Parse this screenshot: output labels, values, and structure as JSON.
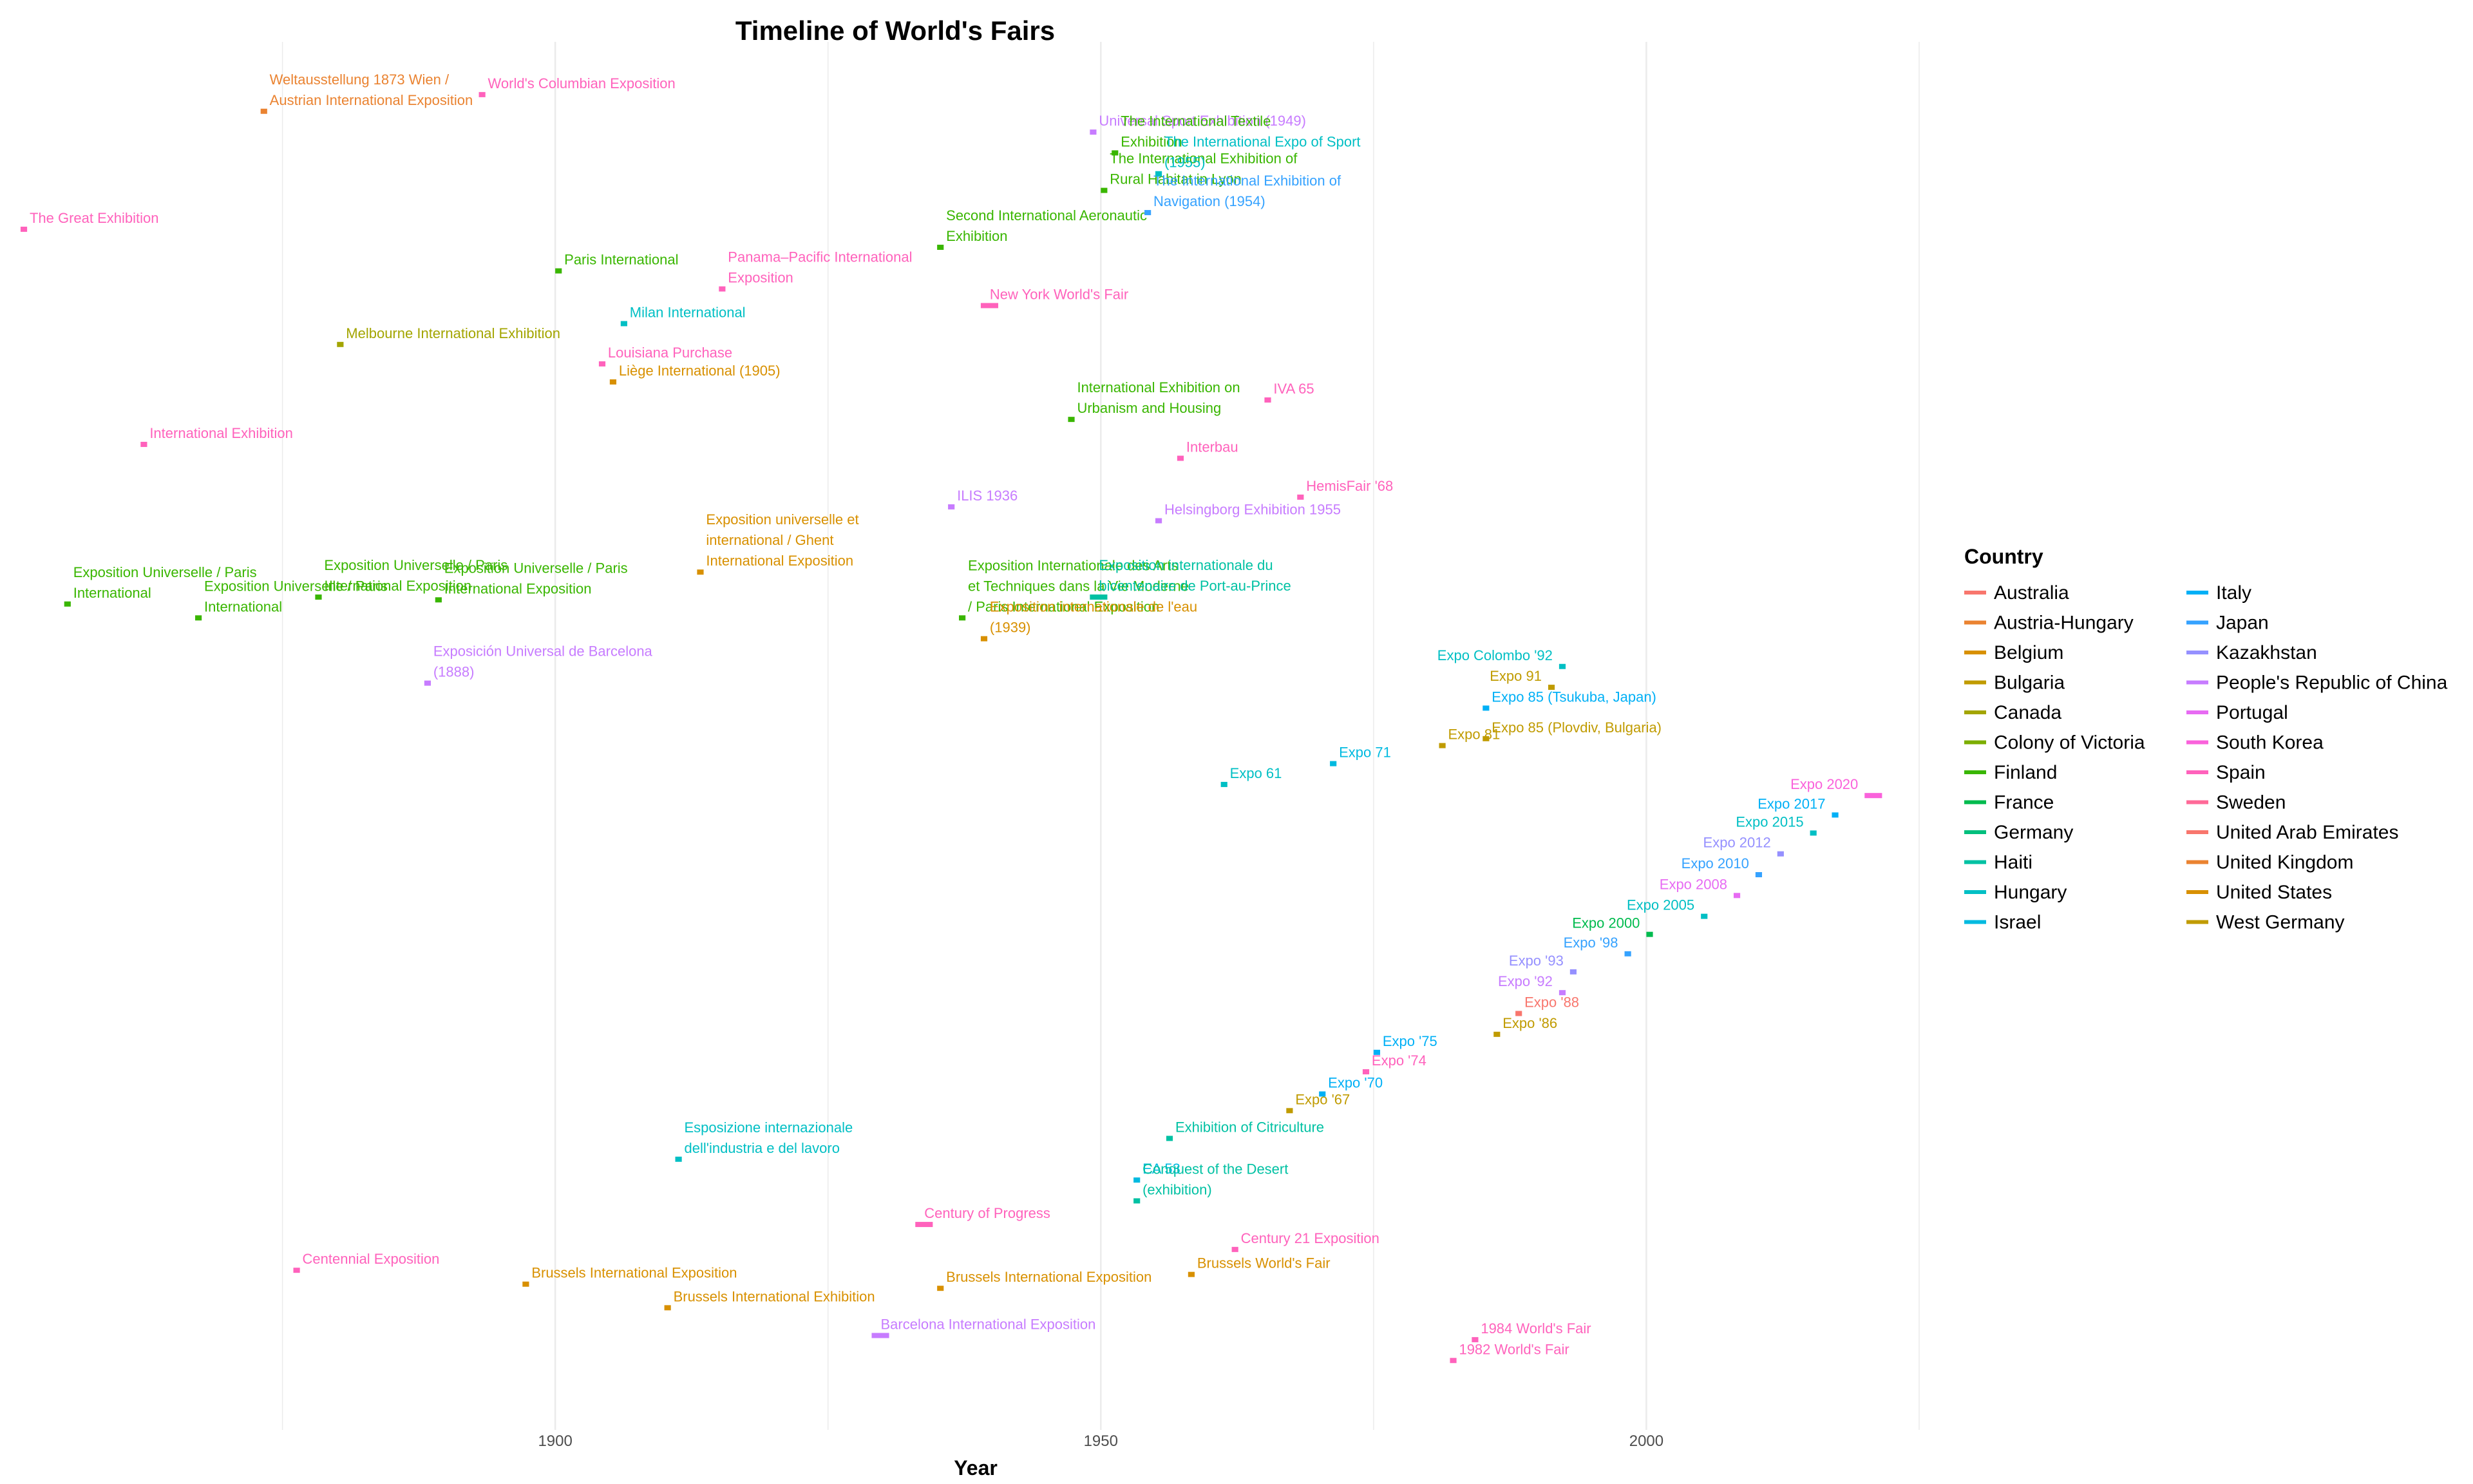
{
  "chart_data": {
    "type": "timeline",
    "title": "Timeline of World's Fairs",
    "xlabel": "Year",
    "ylabel": "",
    "xlim": [
      1850,
      2025
    ],
    "xticks": [
      1900,
      1950,
      2000
    ],
    "grid": true,
    "legend": {
      "title": "Country",
      "position": "right",
      "columns": 2,
      "entries": [
        {
          "name": "Australia",
          "color": "#F8766D"
        },
        {
          "name": "Austria-Hungary",
          "color": "#EA8331"
        },
        {
          "name": "Belgium",
          "color": "#D89000"
        },
        {
          "name": "Bulgaria",
          "color": "#C09B00"
        },
        {
          "name": "Canada",
          "color": "#A3A500"
        },
        {
          "name": "Colony of Victoria",
          "color": "#7CAE00"
        },
        {
          "name": "Finland",
          "color": "#39B600"
        },
        {
          "name": "France",
          "color": "#00BB4E"
        },
        {
          "name": "Germany",
          "color": "#00BF7D"
        },
        {
          "name": "Haiti",
          "color": "#00C1A3"
        },
        {
          "name": "Hungary",
          "color": "#00BFC4"
        },
        {
          "name": "Israel",
          "color": "#00BAE0"
        },
        {
          "name": "Italy",
          "color": "#00B0F6"
        },
        {
          "name": "Japan",
          "color": "#35A2FF"
        },
        {
          "name": "Kazakhstan",
          "color": "#9590FF"
        },
        {
          "name": "People's Republic of China",
          "color": "#C77CFF"
        },
        {
          "name": "Portugal",
          "color": "#E76BF3"
        },
        {
          "name": "South Korea",
          "color": "#FA62DB"
        },
        {
          "name": "Spain",
          "color": "#FF62BC"
        },
        {
          "name": "Sweden",
          "color": "#FF6A98"
        },
        {
          "name": "United Arab Emirates",
          "color": "#F8766D"
        },
        {
          "name": "United Kingdom",
          "color": "#EA8331"
        },
        {
          "name": "United States",
          "color": "#D89000"
        },
        {
          "name": "West Germany",
          "color": "#C09B00"
        }
      ]
    },
    "events": [
      {
        "label": "The Great Exhibition",
        "start": 1851,
        "end": 1851,
        "row": 0.865,
        "color": "#FF62BC"
      },
      {
        "label": "International Exhibition",
        "start": 1862,
        "end": 1862,
        "row": 0.71,
        "color": "#FF62BC"
      },
      {
        "label": "Exposition Universelle / Paris International",
        "start": 1855,
        "end": 1855,
        "row": 0.595,
        "color": "#39B600"
      },
      {
        "label": "Exposition Universelle / Paris International",
        "start": 1867,
        "end": 1867,
        "row": 0.585,
        "color": "#39B600"
      },
      {
        "label": "Exposition Universelle / Paris International Exposition",
        "start": 1878,
        "end": 1878,
        "row": 0.6,
        "color": "#39B600"
      },
      {
        "label": "Exposition Universelle / Paris International Exposition",
        "start": 1889,
        "end": 1889,
        "row": 0.598,
        "color": "#39B600"
      },
      {
        "label": "Paris International",
        "start": 1900,
        "end": 1900,
        "row": 0.835,
        "color": "#39B600"
      },
      {
        "label": "Weltausstellung 1873 Wien / Austrian International Exposition",
        "start": 1873,
        "end": 1873,
        "row": 0.95,
        "color": "#EA8331"
      },
      {
        "label": "World's Columbian Exposition",
        "start": 1893,
        "end": 1893,
        "row": 0.962,
        "color": "#FF62BC"
      },
      {
        "label": "Melbourne International Exhibition",
        "start": 1880,
        "end": 1880,
        "row": 0.782,
        "color": "#A3A500"
      },
      {
        "label": "Centennial Exposition",
        "start": 1876,
        "end": 1876,
        "row": 0.115,
        "color": "#FF62BC"
      },
      {
        "label": "Exposición Universal de Barcelona (1888)",
        "start": 1888,
        "end": 1888,
        "row": 0.538,
        "color": "#C77CFF"
      },
      {
        "label": "Brussels International Exposition",
        "start": 1897,
        "end": 1897,
        "row": 0.105,
        "color": "#D89000"
      },
      {
        "label": "Milan International",
        "start": 1906,
        "end": 1906,
        "row": 0.797,
        "color": "#00BFC4"
      },
      {
        "label": "Louisiana Purchase",
        "start": 1904,
        "end": 1904,
        "row": 0.768,
        "color": "#FF62BC"
      },
      {
        "label": "Liège International (1905)",
        "start": 1905,
        "end": 1905,
        "row": 0.755,
        "color": "#D89000"
      },
      {
        "label": "Brussels International Exhibition",
        "start": 1910,
        "end": 1910,
        "row": 0.088,
        "color": "#D89000"
      },
      {
        "label": "Esposizione internazionale dell'industria e del lavoro",
        "start": 1911,
        "end": 1911,
        "row": 0.195,
        "color": "#00BFC4"
      },
      {
        "label": "Exposition universelle et international / Ghent International Exposition",
        "start": 1913,
        "end": 1913,
        "row": 0.618,
        "color": "#D89000"
      },
      {
        "label": "Panama–Pacific International Exposition",
        "start": 1915,
        "end": 1915,
        "row": 0.822,
        "color": "#FF62BC"
      },
      {
        "label": "Barcelona International Exposition",
        "start": 1929,
        "end": 1930,
        "row": 0.068,
        "color": "#C77CFF"
      },
      {
        "label": "Century of Progress",
        "start": 1933,
        "end": 1934,
        "row": 0.148,
        "color": "#FF62BC"
      },
      {
        "label": "Brussels International Exposition",
        "start": 1935,
        "end": 1935,
        "row": 0.102,
        "color": "#D89000"
      },
      {
        "label": "ILIS 1936",
        "start": 1936,
        "end": 1936,
        "row": 0.665,
        "color": "#C77CFF"
      },
      {
        "label": "Exposition Internationale des Arts et Techniques dans la Vie Moderne / Paris International Exposition",
        "start": 1937,
        "end": 1937,
        "row": 0.585,
        "color": "#39B600"
      },
      {
        "label": "Exposition internationale de l'eau (1939)",
        "start": 1939,
        "end": 1939,
        "row": 0.57,
        "color": "#D89000"
      },
      {
        "label": "New York World's Fair",
        "start": 1939,
        "end": 1940,
        "row": 0.81,
        "color": "#FF62BC"
      },
      {
        "label": "Second International Aeronautic Exhibition",
        "start": 1935,
        "end": 1935,
        "row": 0.852,
        "color": "#39B600"
      },
      {
        "label": "International Exhibition on Urbanism and Housing",
        "start": 1947,
        "end": 1947,
        "row": 0.728,
        "color": "#39B600"
      },
      {
        "label": "Universal Sport Exhibition (1949)",
        "start": 1949,
        "end": 1949,
        "row": 0.935,
        "color": "#C77CFF"
      },
      {
        "label": "Exposition internationale du bicentenaire de Port-au-Prince",
        "start": 1949,
        "end": 1950,
        "row": 0.6,
        "color": "#00C1A3"
      },
      {
        "label": "The International Exhibition of Rural Habitat in Lyon",
        "start": 1950,
        "end": 1950,
        "row": 0.893,
        "color": "#39B600"
      },
      {
        "label": "The International Textile Exhibition",
        "start": 1951,
        "end": 1951,
        "row": 0.92,
        "color": "#39B600"
      },
      {
        "label": "EA 53",
        "start": 1953,
        "end": 1953,
        "row": 0.18,
        "color": "#00BAE0"
      },
      {
        "label": "The International Exhibition of Navigation (1954)",
        "start": 1954,
        "end": 1954,
        "row": 0.877,
        "color": "#35A2FF"
      },
      {
        "label": "The International Expo of Sport (1955)",
        "start": 1955,
        "end": 1955,
        "row": 0.905,
        "color": "#00BFC4"
      },
      {
        "label": "Helsingborg Exhibition 1955",
        "start": 1955,
        "end": 1955,
        "row": 0.655,
        "color": "#C77CFF"
      },
      {
        "label": "Conquest of the Desert (exhibition)",
        "start": 1953,
        "end": 1953,
        "row": 0.165,
        "color": "#00C1A3"
      },
      {
        "label": "Exhibition of Citriculture",
        "start": 1956,
        "end": 1956,
        "row": 0.21,
        "color": "#00C1A3"
      },
      {
        "label": "Interbau",
        "start": 1957,
        "end": 1957,
        "row": 0.7,
        "color": "#FF62BC"
      },
      {
        "label": "Brussels World's Fair",
        "start": 1958,
        "end": 1958,
        "row": 0.112,
        "color": "#D89000"
      },
      {
        "label": "Expo 61",
        "start": 1961,
        "end": 1961,
        "row": 0.465,
        "color": "#00BFC4"
      },
      {
        "label": "Century 21 Exposition",
        "start": 1962,
        "end": 1962,
        "row": 0.13,
        "color": "#FF62BC"
      },
      {
        "label": "IVA 65",
        "start": 1965,
        "end": 1965,
        "row": 0.742,
        "color": "#FF62BC"
      },
      {
        "label": "Expo '67",
        "start": 1967,
        "end": 1967,
        "row": 0.23,
        "color": "#C09B00"
      },
      {
        "label": "HemisFair '68",
        "start": 1968,
        "end": 1968,
        "row": 0.672,
        "color": "#FF62BC"
      },
      {
        "label": "Expo '70",
        "start": 1970,
        "end": 1970,
        "row": 0.242,
        "color": "#00B0F6"
      },
      {
        "label": "Expo 71",
        "start": 1971,
        "end": 1971,
        "row": 0.48,
        "color": "#00BAE0"
      },
      {
        "label": "Expo '74",
        "start": 1974,
        "end": 1974,
        "row": 0.258,
        "color": "#FF62BC"
      },
      {
        "label": "Expo '75",
        "start": 1975,
        "end": 1975,
        "row": 0.272,
        "color": "#00B0F6"
      },
      {
        "label": "Expo 81",
        "start": 1981,
        "end": 1981,
        "row": 0.493,
        "color": "#C09B00"
      },
      {
        "label": "1982 World's Fair",
        "start": 1982,
        "end": 1982,
        "row": 0.05,
        "color": "#FF62BC"
      },
      {
        "label": "1984 World's Fair",
        "start": 1984,
        "end": 1984,
        "row": 0.065,
        "color": "#FF62BC"
      },
      {
        "label": "Expo 85 (Tsukuba, Japan)",
        "start": 1985,
        "end": 1985,
        "row": 0.52,
        "color": "#00B0F6"
      },
      {
        "label": "Expo 85 (Plovdiv, Bulgaria)",
        "start": 1985,
        "end": 1985,
        "row": 0.498,
        "color": "#C09B00"
      },
      {
        "label": "Expo '86",
        "start": 1986,
        "end": 1986,
        "row": 0.285,
        "color": "#C09B00"
      },
      {
        "label": "Expo '88",
        "start": 1988,
        "end": 1988,
        "row": 0.3,
        "color": "#F8766D"
      },
      {
        "label": "Expo 91",
        "start": 1991,
        "end": 1991,
        "row": 0.535,
        "color": "#C09B00"
      },
      {
        "label": "Expo '92",
        "start": 1992,
        "end": 1992,
        "row": 0.315,
        "color": "#C77CFF"
      },
      {
        "label": "Expo Colombo '92",
        "start": 1992,
        "end": 1992,
        "row": 0.55,
        "color": "#00BFC4"
      },
      {
        "label": "Expo '93",
        "start": 1993,
        "end": 1993,
        "row": 0.33,
        "color": "#9590FF"
      },
      {
        "label": "Expo '98",
        "start": 1998,
        "end": 1998,
        "row": 0.343,
        "color": "#35A2FF"
      },
      {
        "label": "Expo 2000",
        "start": 2000,
        "end": 2000,
        "row": 0.357,
        "color": "#00BB4E"
      },
      {
        "label": "Expo 2005",
        "start": 2005,
        "end": 2005,
        "row": 0.37,
        "color": "#00BFC4"
      },
      {
        "label": "Expo 2008",
        "start": 2008,
        "end": 2008,
        "row": 0.385,
        "color": "#E76BF3"
      },
      {
        "label": "Expo 2010",
        "start": 2010,
        "end": 2010,
        "row": 0.4,
        "color": "#35A2FF"
      },
      {
        "label": "Expo 2012",
        "start": 2012,
        "end": 2012,
        "row": 0.415,
        "color": "#9590FF"
      },
      {
        "label": "Expo 2015",
        "start": 2015,
        "end": 2015,
        "row": 0.43,
        "color": "#00BFC4"
      },
      {
        "label": "Expo 2017",
        "start": 2017,
        "end": 2017,
        "row": 0.443,
        "color": "#00B0F6"
      },
      {
        "label": "Expo 2020",
        "start": 2020,
        "end": 2021,
        "row": 0.457,
        "color": "#FA62DB"
      }
    ]
  }
}
